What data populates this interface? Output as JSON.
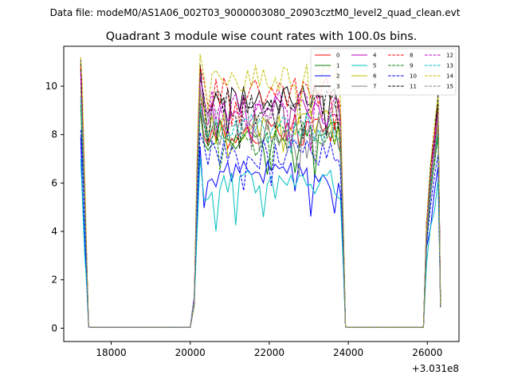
{
  "figure": {
    "suptitle": "Data file: modeM0/AS1A06_002T03_9000003080_20903cztM0_level2_quad_clean.evt",
    "title": "Quadrant 3 module wise count rates with 100.0s bins."
  },
  "chart_data": {
    "type": "line",
    "title": "Quadrant 3 module wise count rates with 100.0s bins.",
    "xlabel": "",
    "ylabel": "",
    "x_offset_label": "+3.031e8",
    "xlim": [
      16800,
      26800
    ],
    "ylim": [
      -0.55,
      11.65
    ],
    "xticks": [
      18000,
      20000,
      22000,
      24000,
      26000
    ],
    "xtick_labels": [
      "18000",
      "20000",
      "22000",
      "24000",
      "26000"
    ],
    "yticks": [
      0,
      2,
      4,
      6,
      8,
      10
    ],
    "ytick_labels": [
      "0",
      "2",
      "4",
      "6",
      "8",
      "10"
    ],
    "grid": false,
    "legend_position": "top-right",
    "legend_columns": 4,
    "segments": [
      {
        "x_start": 17230,
        "x_end": 17430
      },
      {
        "x_start": 17430,
        "x_end": 20050
      },
      {
        "x_start": 20050,
        "x_end": 23900
      },
      {
        "x_start": 23900,
        "x_end": 25950
      },
      {
        "x_start": 25950,
        "x_end": 26350
      }
    ],
    "series": [
      {
        "name": "0",
        "color": "#ff0000",
        "dash": "solid",
        "mean_high": 8.2,
        "spike": 10.9
      },
      {
        "name": "1",
        "color": "#008000",
        "dash": "solid",
        "mean_high": 8.0,
        "spike": 9.4
      },
      {
        "name": "2",
        "color": "#0000ff",
        "dash": "solid",
        "mean_high": 6.3,
        "spike": 7.9
      },
      {
        "name": "3",
        "color": "#000000",
        "dash": "solid",
        "mean_high": 9.5,
        "spike": 11.1
      },
      {
        "name": "4",
        "color": "#bf00bf",
        "dash": "solid",
        "mean_high": 9.0,
        "spike": 10.5
      },
      {
        "name": "5",
        "color": "#00bfbf",
        "dash": "solid",
        "mean_high": 5.9,
        "spike": 7.0
      },
      {
        "name": "6",
        "color": "#bfbf00",
        "dash": "solid",
        "mean_high": 8.4,
        "spike": 9.9
      },
      {
        "name": "7",
        "color": "#808080",
        "dash": "solid",
        "mean_high": 8.1,
        "spike": 9.6
      },
      {
        "name": "8",
        "color": "#ff0000",
        "dash": "dashed",
        "mean_high": 9.7,
        "spike": 10.8
      },
      {
        "name": "9",
        "color": "#008000",
        "dash": "dashed",
        "mean_high": 8.0,
        "spike": 9.2
      },
      {
        "name": "10",
        "color": "#0000ff",
        "dash": "dashed",
        "mean_high": 7.2,
        "spike": 8.2
      },
      {
        "name": "11",
        "color": "#000000",
        "dash": "dashed",
        "mean_high": 9.3,
        "spike": 10.7
      },
      {
        "name": "12",
        "color": "#bf00bf",
        "dash": "dashed",
        "mean_high": 9.2,
        "spike": 10.6
      },
      {
        "name": "13",
        "color": "#00bfbf",
        "dash": "dashed",
        "mean_high": 8.3,
        "spike": 9.5
      },
      {
        "name": "14",
        "color": "#bfbf00",
        "dash": "dashed",
        "mean_high": 10.3,
        "spike": 11.2
      },
      {
        "name": "15",
        "color": "#808080",
        "dash": "dashed",
        "mean_high": 8.7,
        "spike": 10.0
      }
    ]
  }
}
